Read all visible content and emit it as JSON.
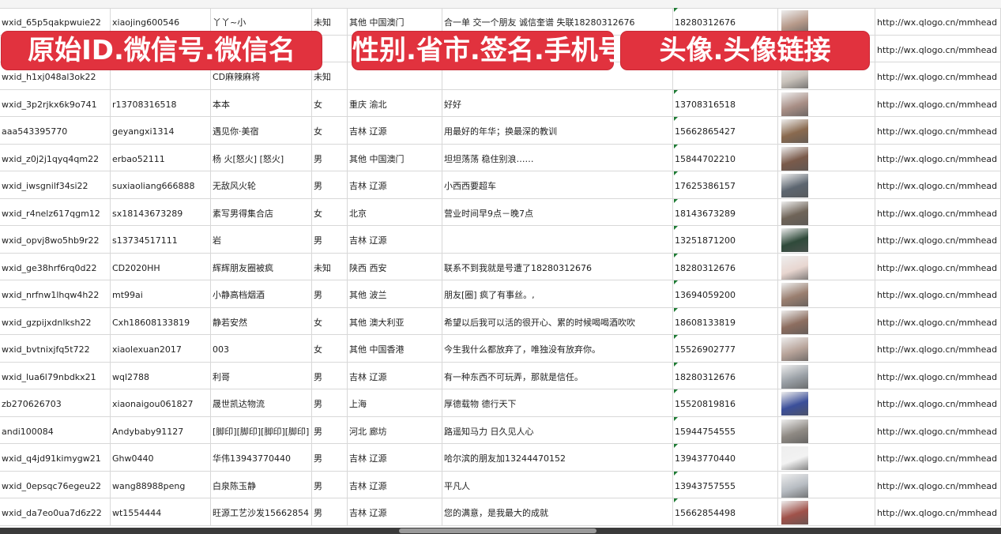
{
  "overlays": [
    "原始ID.微信号.微信名",
    "性别.省市.签名.手机号",
    "头像.头像链接"
  ],
  "rows": [
    {
      "id": "wxid_65p5qakpwuie22",
      "wx": "xiaojing600546",
      "name": "丫丫~小",
      "sex": "未知",
      "region": "其他 中国澳门",
      "sign": "合一单 交一个朋友 诚信奎谱 失联18280312676",
      "phone": "18280312676",
      "url": "http://wx.qlogo.cn/mmhead",
      "avatar": "#b79a8a"
    },
    {
      "id": "",
      "wx": "",
      "name": "",
      "sex": "",
      "region": "",
      "sign": "",
      "phone": "",
      "url": "http://wx.qlogo.cn/mmhead",
      "avatar": "#6e7fa8"
    },
    {
      "id": "wxid_h1xj048al3ok22",
      "wx": "",
      "name": "CD麻辣麻将",
      "sex": "未知",
      "region": "",
      "sign": "",
      "phone": "",
      "url": "http://wx.qlogo.cn/mmhead",
      "avatar": "#c9c2bb"
    },
    {
      "id": "wxid_3p2rjkx6k9o741",
      "wx": "r13708316518",
      "name": "本本",
      "sex": "女",
      "region": "重庆 渝北",
      "sign": "好好",
      "phone": "13708316518",
      "url": "http://wx.qlogo.cn/mmhead",
      "avatar": "#a98f86"
    },
    {
      "id": "aaa543395770",
      "wx": "geyangxi1314",
      "name": "遇见你·美宿",
      "sex": "女",
      "region": "吉林 辽源",
      "sign": "用最好的年华；换最深的教训",
      "phone": "15662865427",
      "url": "http://wx.qlogo.cn/mmhead",
      "avatar": "#8a6a4f"
    },
    {
      "id": "wxid_z0j2j1qyq4qm22",
      "wx": "erbao52111",
      "name": "杨 火[怒火] [怒火]",
      "sex": "男",
      "region": "其他 中国澳门",
      "sign": "坦坦荡荡 稳住别浪……",
      "phone": "15844702210",
      "url": "http://wx.qlogo.cn/mmhead",
      "avatar": "#7a5a4a"
    },
    {
      "id": "wxid_iwsgnilf34si22",
      "wx": "suxiaoliang666888",
      "name": "无敌风火轮",
      "sex": "男",
      "region": "吉林 辽源",
      "sign": "小西西要超车",
      "phone": "17625386157",
      "url": "http://wx.qlogo.cn/mmhead",
      "avatar": "#5d6670"
    },
    {
      "id": "wxid_r4nelz617qgm12",
      "wx": "sx18143673289",
      "name": "素写男得集合店",
      "sex": "女",
      "region": "北京",
      "sign": "营业时间早9点－晚7点",
      "phone": "18143673289",
      "url": "http://wx.qlogo.cn/mmhead",
      "avatar": "#6f6458"
    },
    {
      "id": "wxid_opvj8wo5hb9r22",
      "wx": "s13734517111",
      "name": "岩",
      "sex": "男",
      "region": "吉林 辽源",
      "sign": "",
      "phone": "13251871200",
      "url": "http://wx.qlogo.cn/mmhead",
      "avatar": "#2f4a3a"
    },
    {
      "id": "wxid_ge38hrf6rq0d22",
      "wx": "CD2020HH",
      "name": "辉辉朋友圈被疯",
      "sex": "未知",
      "region": "陕西 西安",
      "sign": "联系不到我就是号遭了18280312676",
      "phone": "18280312676",
      "url": "http://wx.qlogo.cn/mmhead",
      "avatar": "#e8d6d0"
    },
    {
      "id": "wxid_nrfnw1lhqw4h22",
      "wx": "mt99ai",
      "name": "小静高档烟酒",
      "sex": "男",
      "region": "其他 波兰",
      "sign": "朋友[圈] 疯了有事丝。,",
      "phone": "13694059200",
      "url": "http://wx.qlogo.cn/mmhead",
      "avatar": "#9a7f70"
    },
    {
      "id": "wxid_gzpijxdnlksh22",
      "wx": "Cxh18608133819",
      "name": "静若安然",
      "sex": "女",
      "region": "其他 澳大利亚",
      "sign": "希望以后我可以活的很开心、累的时候喝喝酒吹吹",
      "phone": "18608133819",
      "url": "http://wx.qlogo.cn/mmhead",
      "avatar": "#8d6e60"
    },
    {
      "id": "wxid_bvtnixjfq5t722",
      "wx": "xiaolexuan2017",
      "name": "003",
      "sex": "女",
      "region": "其他 中国香港",
      "sign": "今生我什么都放弃了，唯独没有放弃你。",
      "phone": "15526902777",
      "url": "http://wx.qlogo.cn/mmhead",
      "avatar": "#b8a49a"
    },
    {
      "id": "wxid_lua6l79nbdkx21",
      "wx": "wql2788",
      "name": "利哥",
      "sex": "男",
      "region": "吉林 辽源",
      "sign": "有一种东西不可玩弄，那就是信任。",
      "phone": "18280312676",
      "url": "http://wx.qlogo.cn/mmhead",
      "avatar": "#9aa0a6"
    },
    {
      "id": "zb270626703",
      "wx": "xiaonaigou061827",
      "name": "晟世凯达物流",
      "sex": "男",
      "region": "上海",
      "sign": "厚德载物 德行天下",
      "phone": "15520819816",
      "url": "http://wx.qlogo.cn/mmhead",
      "avatar": "#3b4f9a"
    },
    {
      "id": "andi100084",
      "wx": "Andybaby91127",
      "name": "[脚印][脚印][脚印][脚印]",
      "sex": "男",
      "region": "河北 廊坊",
      "sign": "路遥知马力 日久见人心",
      "phone": "15944754555",
      "url": "http://wx.qlogo.cn/mmhead",
      "avatar": "#8f8a84"
    },
    {
      "id": "wxid_q4jd91kimygw21",
      "wx": "Ghw0440",
      "name": "华伟13943770440",
      "sex": "男",
      "region": "吉林 辽源",
      "sign": "哈尔滨的朋友加13244470152",
      "phone": "13943770440",
      "url": "http://wx.qlogo.cn/mmhead",
      "avatar": "#f2f2f2"
    },
    {
      "id": "wxid_0epsqc76egeu22",
      "wx": "wang88988peng",
      "name": "白泉陈玉静",
      "sex": "男",
      "region": "吉林 辽源",
      "sign": "平凡人",
      "phone": "13943757555",
      "url": "http://wx.qlogo.cn/mmhead",
      "avatar": "#b7bcc2"
    },
    {
      "id": "wxid_da7eo0ua7d6z22",
      "wx": "wt1554444",
      "name": "旺源工艺沙发15662854",
      "sex": "男",
      "region": "吉林 辽源",
      "sign": "您的满意，是我最大的成就",
      "phone": "15662854498",
      "url": "http://wx.qlogo.cn/mmhead",
      "avatar": "#a0524a"
    }
  ]
}
